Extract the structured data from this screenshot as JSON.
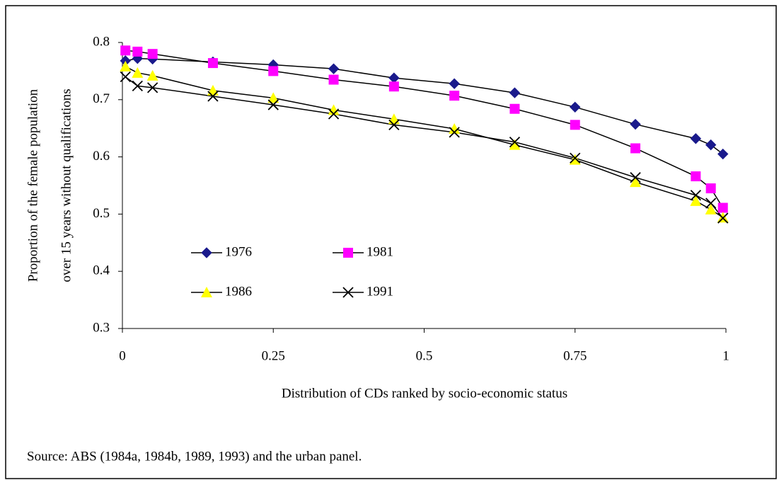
{
  "chart_data": {
    "type": "line",
    "xlabel": "Distribution of CDs ranked by socio-economic status",
    "ylabel": [
      "Proportion of the female population",
      "over 15 years without qualifications"
    ],
    "note": "Source:  ABS (1984a, 1984b, 1989, 1993) and the urban panel.",
    "x": [
      0.005,
      0.025,
      0.05,
      0.15,
      0.25,
      0.35,
      0.45,
      0.55,
      0.65,
      0.75,
      0.85,
      0.95,
      0.975,
      0.995
    ],
    "series": [
      {
        "name": "1976",
        "color": "#1a1a8c",
        "marker": "diamond",
        "values": [
          0.768,
          0.772,
          0.771,
          0.766,
          0.761,
          0.754,
          0.738,
          0.728,
          0.712,
          0.687,
          0.657,
          0.632,
          0.621,
          0.605
        ]
      },
      {
        "name": "1981",
        "color": "#ff00ff",
        "marker": "square",
        "values": [
          0.786,
          0.784,
          0.78,
          0.764,
          0.75,
          0.735,
          0.723,
          0.707,
          0.684,
          0.656,
          0.615,
          0.566,
          0.545,
          0.511
        ]
      },
      {
        "name": "1986",
        "color": "#ffff00",
        "marker": "triangle",
        "values": [
          0.758,
          0.747,
          0.742,
          0.716,
          0.703,
          0.682,
          0.666,
          0.649,
          0.621,
          0.595,
          0.556,
          0.523,
          0.508,
          0.494
        ]
      },
      {
        "name": "1991",
        "color": "#000000",
        "marker": "x",
        "values": [
          0.74,
          0.724,
          0.721,
          0.706,
          0.691,
          0.675,
          0.656,
          0.643,
          0.626,
          0.598,
          0.564,
          0.533,
          0.519,
          0.493
        ]
      }
    ],
    "line_color": "#000000",
    "xlim": [
      0,
      1
    ],
    "xticks": [
      0,
      0.25,
      0.5,
      0.75,
      1
    ],
    "ylim": [
      0.3,
      0.8
    ],
    "yticks": [
      0.3,
      0.4,
      0.5,
      0.6,
      0.7,
      0.8
    ],
    "grid": false,
    "legend": "lower left"
  }
}
